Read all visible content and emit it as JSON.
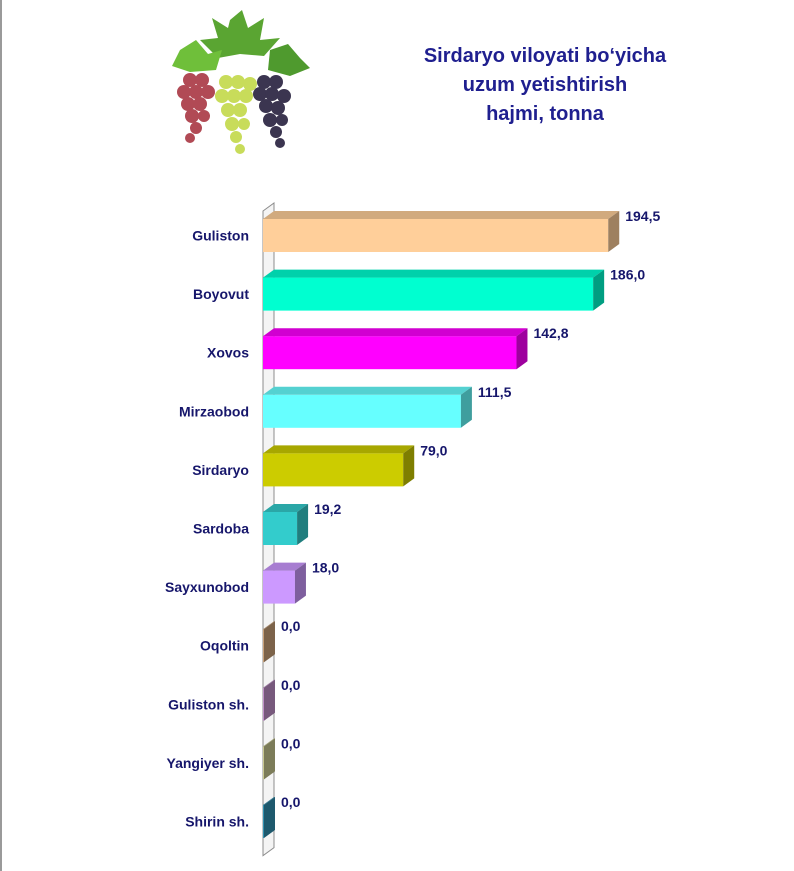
{
  "title_lines": [
    "Sirdaryo viloyati bo‘yicha",
    "uzum yetishtirish",
    "hajmi, tonna"
  ],
  "decoration": {
    "image": "grapes-illustration"
  },
  "chart_data": {
    "type": "bar",
    "orientation": "horizontal",
    "title": "Sirdaryo viloyati bo‘yicha uzum yetishtirish hajmi, tonna",
    "categories": [
      "Guliston",
      "Boyovut",
      "Xovos",
      "Mirzaobod",
      "Sirdaryo",
      "Sardoba",
      "Sayxunobod",
      "Oqoltin",
      "Guliston sh.",
      "Yangiyer sh.",
      "Shirin sh."
    ],
    "values": [
      194.5,
      186.0,
      142.8,
      111.5,
      79.0,
      19.2,
      18.0,
      0.0,
      0.0,
      0.0,
      0.0
    ],
    "value_labels": [
      "194,5",
      "186,0",
      "142,8",
      "111,5",
      "79,0",
      "19,2",
      "18,0",
      "0,0",
      "0,0",
      "0,0",
      "0,0"
    ],
    "colors": [
      "#ffcf9a",
      "#00ffd0",
      "#ff00ff",
      "#66ffff",
      "#cccc00",
      "#33cccc",
      "#cc99ff",
      "#c8a078",
      "#c090c8",
      "#c8c890",
      "#3090b0"
    ],
    "xlim": [
      0,
      200
    ],
    "grid": false,
    "legend": "none",
    "style": "3d"
  }
}
